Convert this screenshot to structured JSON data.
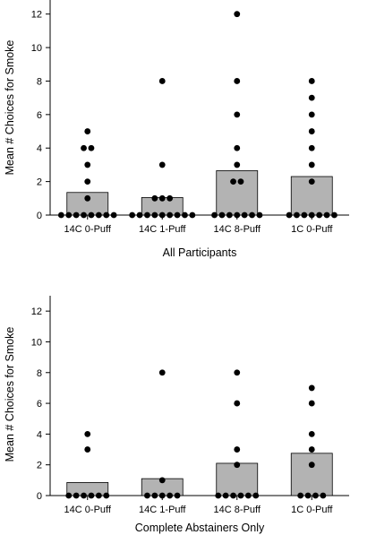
{
  "chart_data": [
    {
      "type": "bar",
      "xlabel": "All Participants",
      "ylabel": "Mean # Choices for Smoke",
      "ylim": [
        0,
        13
      ],
      "yticks": [
        0,
        2,
        4,
        6,
        8,
        10,
        12
      ],
      "categories": [
        "14C 0-Puff",
        "14C 1-Puff",
        "14C 8-Puff",
        "1C 0-Puff"
      ],
      "values": [
        1.35,
        1.05,
        2.65,
        2.3
      ],
      "points": [
        [
          0,
          0,
          0,
          0,
          0,
          0,
          0,
          0,
          1,
          2,
          3,
          4,
          4,
          5
        ],
        [
          0,
          0,
          0,
          0,
          0,
          0,
          0,
          0,
          0,
          1,
          1,
          1,
          3,
          8
        ],
        [
          0,
          0,
          0,
          0,
          0,
          0,
          0,
          2,
          2,
          3,
          4,
          6,
          8,
          12
        ],
        [
          0,
          0,
          0,
          0,
          0,
          0,
          0,
          2,
          3,
          4,
          5,
          6,
          7,
          8
        ]
      ],
      "color": "#b3b3b3"
    },
    {
      "type": "bar",
      "xlabel": "Complete Abstainers Only",
      "ylabel": "Mean # Choices for Smoke",
      "ylim": [
        0,
        13
      ],
      "yticks": [
        0,
        2,
        4,
        6,
        8,
        10,
        12
      ],
      "categories": [
        "14C 0-Puff",
        "14C 1-Puff",
        "14C 8-Puff",
        "1C 0-Puff"
      ],
      "values": [
        0.85,
        1.1,
        2.1,
        2.75
      ],
      "points": [
        [
          0,
          0,
          0,
          0,
          0,
          0,
          3,
          4
        ],
        [
          0,
          0,
          0,
          0,
          0,
          1,
          8
        ],
        [
          0,
          0,
          0,
          0,
          0,
          0,
          2,
          3,
          6,
          8
        ],
        [
          0,
          0,
          0,
          0,
          2,
          3,
          4,
          6,
          7
        ]
      ],
      "color": "#b3b3b3"
    }
  ]
}
